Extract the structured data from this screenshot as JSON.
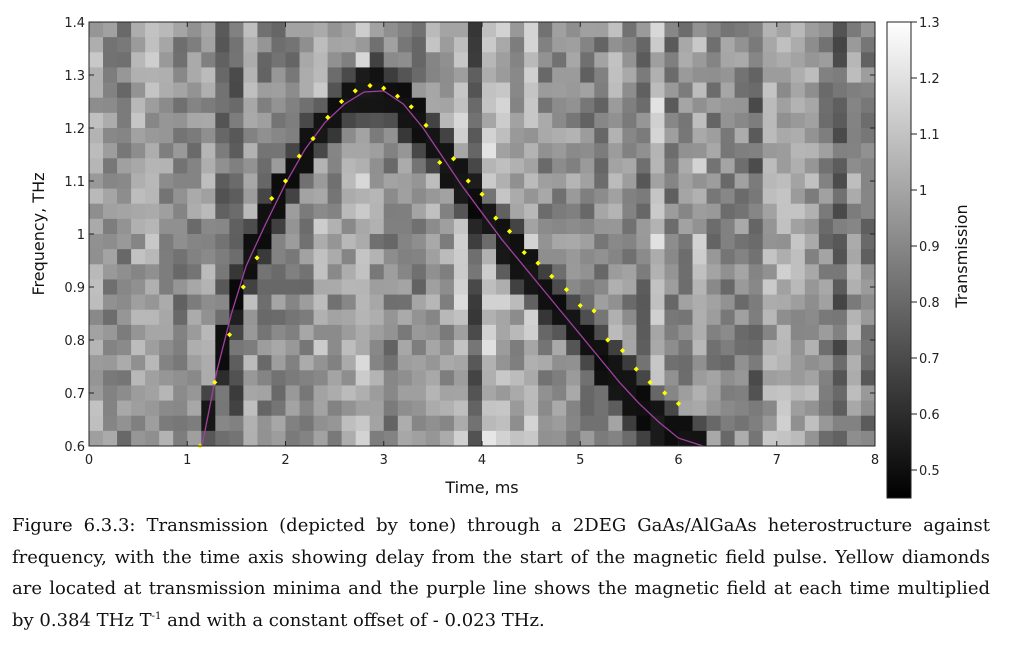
{
  "chart_data": {
    "type": "heatmap",
    "xlabel": "Time, ms",
    "ylabel": "Frequency, THz",
    "colorbar_label": "Transmission",
    "xlim": [
      0,
      8
    ],
    "ylim": [
      0.6,
      1.4
    ],
    "x_ticks": [
      "0",
      "1",
      "2",
      "3",
      "4",
      "5",
      "6",
      "7",
      "8"
    ],
    "y_ticks": [
      "0.6",
      "0.7",
      "0.8",
      "0.9",
      "1",
      "1.1",
      "1.2",
      "1.3",
      "1.4"
    ],
    "colorbar_range": [
      0.45,
      1.3
    ],
    "colorbar_ticks": [
      "0.5",
      "0.6",
      "0.7",
      "0.8",
      "0.9",
      "1",
      "1.1",
      "1.2",
      "1.3"
    ],
    "colormap": [
      "#000000",
      "#ffffff"
    ],
    "grid": false,
    "minima_marker_color": "#ffff00",
    "field_line_color": "#a040a0",
    "transmission_minima": {
      "name": "Yellow diamonds",
      "x": [
        1.13,
        1.28,
        1.43,
        1.57,
        1.71,
        1.86,
        2.0,
        2.14,
        2.28,
        2.43,
        2.57,
        2.71,
        2.86,
        3.0,
        3.14,
        3.28,
        3.43,
        3.57,
        3.71,
        3.86,
        4.0,
        4.14,
        4.28,
        4.43,
        4.57,
        4.71,
        4.86,
        5.0,
        5.14,
        5.28,
        5.43,
        5.57,
        5.71,
        5.86,
        6.0
      ],
      "y": [
        0.6,
        0.72,
        0.81,
        0.9,
        0.955,
        1.067,
        1.1,
        1.147,
        1.18,
        1.22,
        1.25,
        1.27,
        1.28,
        1.275,
        1.26,
        1.24,
        1.205,
        1.135,
        1.142,
        1.1,
        1.075,
        1.03,
        1.005,
        0.965,
        0.945,
        0.92,
        0.895,
        0.865,
        0.855,
        0.8,
        0.78,
        0.745,
        0.72,
        0.7,
        0.68
      ]
    },
    "magnetic_field_line": {
      "name": "Purple line",
      "x": [
        1.15,
        1.3,
        1.45,
        1.6,
        1.8,
        2.0,
        2.2,
        2.4,
        2.6,
        2.8,
        3.0,
        3.2,
        3.4,
        3.6,
        3.8,
        4.0,
        4.2,
        4.4,
        4.6,
        4.8,
        5.0,
        5.2,
        5.4,
        5.6,
        5.8,
        6.0,
        6.25
      ],
      "y": [
        0.6,
        0.74,
        0.85,
        0.94,
        1.02,
        1.095,
        1.16,
        1.21,
        1.245,
        1.268,
        1.27,
        1.245,
        1.2,
        1.145,
        1.09,
        1.04,
        0.99,
        0.945,
        0.9,
        0.855,
        0.81,
        0.765,
        0.72,
        0.68,
        0.645,
        0.615,
        0.6
      ]
    }
  },
  "caption": {
    "before_sup": "Figure 6.3.3: Transmission (depicted by tone) through a 2DEG GaAs/AlGaAs heterostructure against frequency, with the time axis showing delay from the start of the magnetic field pulse. Yellow diamonds are located at transmission minima and the purple line shows the magnetic field at each time multiplied by 0.384 THz T",
    "sup": "-1",
    "after_sup": " and with a constant offset of - 0.023 THz."
  }
}
